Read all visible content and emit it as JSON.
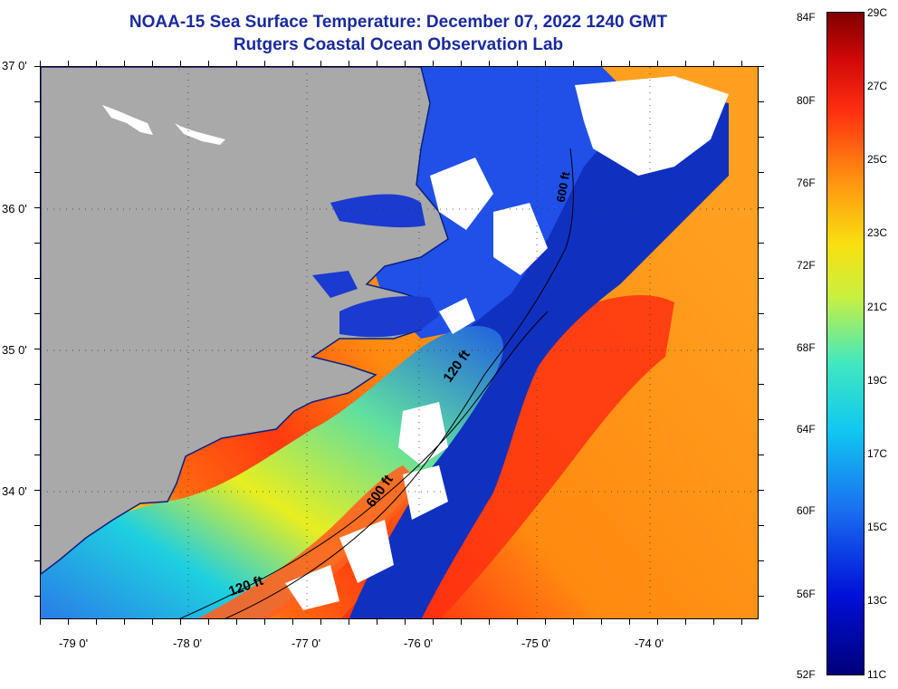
{
  "title": {
    "line1": "NOAA-15 Sea Surface Temperature:  December 07, 2022 1240 GMT",
    "line2": "Rutgers Coastal Ocean Observation Lab"
  },
  "axes": {
    "lat_labels": [
      "37 0'",
      "36 0'",
      "35 0'",
      "34 0'"
    ],
    "lon_labels": [
      "-79 0'",
      "-78 0'",
      "-77 0'",
      "-76 0'",
      "-75 0'",
      "-74 0'"
    ]
  },
  "isobaths": {
    "label_120_north": "120 ft",
    "label_600": "600 ft",
    "label_120_south": "120 ft",
    "label_600_north": "600 ft"
  },
  "colorbar": {
    "f_labels": [
      "84F",
      "80F",
      "76F",
      "72F",
      "68F",
      "64F",
      "60F",
      "56F",
      "52F"
    ],
    "c_labels": [
      "29C",
      "27C",
      "25C",
      "23C",
      "21C",
      "19C",
      "17C",
      "15C",
      "13C",
      "11C"
    ]
  },
  "colors": {
    "land": "#a9a9a9",
    "cloud": "#ffffff",
    "title": "#1a2a9c"
  }
}
